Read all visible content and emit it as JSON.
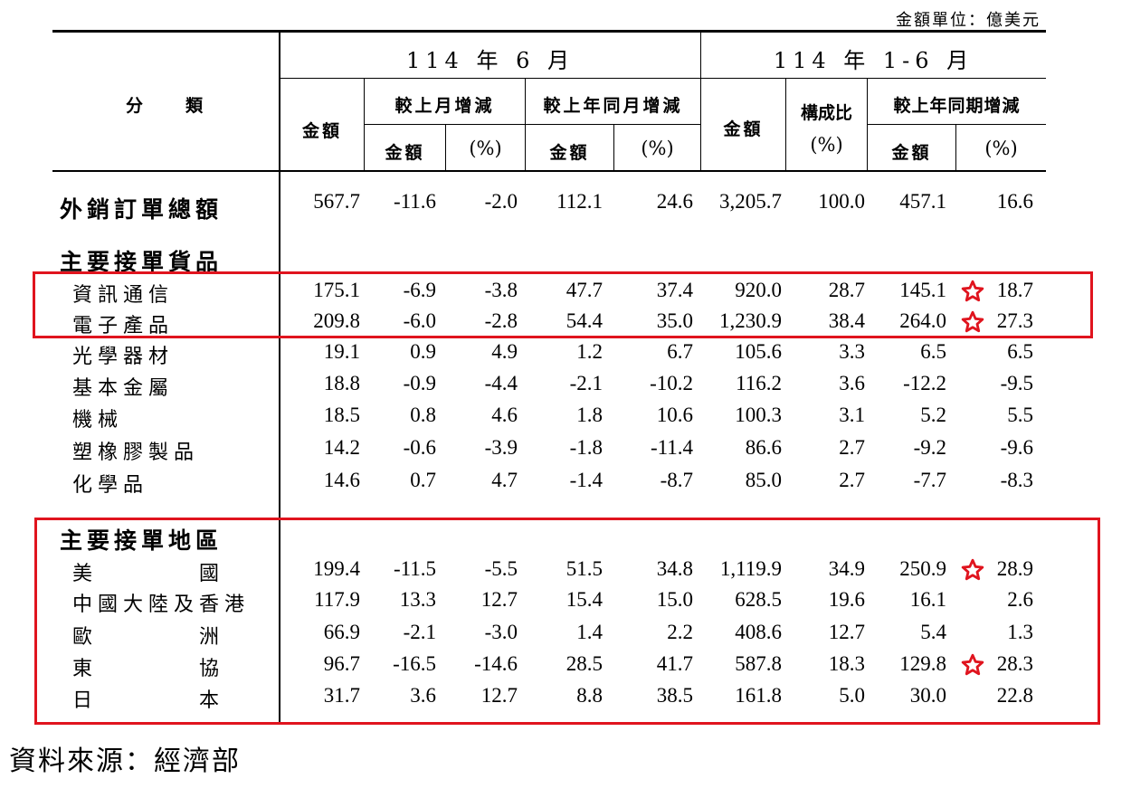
{
  "unit_note": "金額單位：億美元",
  "headers": {
    "category": "分　　類",
    "period1": "114 年 6 月",
    "period2": "114 年 1-6 月",
    "amount": "金額",
    "mom": "較上月增減",
    "yoy_month": "較上年同月增減",
    "share": "構成比",
    "share_unit": "(%)",
    "yoy_period": "較上年同期增減",
    "sub_amount": "金額",
    "sub_pct": "(%)"
  },
  "total": {
    "label": "外銷訂單總額",
    "values": [
      "567.7",
      "-11.6",
      "-2.0",
      "112.1",
      "24.6",
      "3,205.7",
      "100.0",
      "457.1",
      "16.6"
    ]
  },
  "products": {
    "title": "主要接單貨品",
    "rows": [
      {
        "label": "資訊通信",
        "values": [
          "175.1",
          "-6.9",
          "-3.8",
          "47.7",
          "37.4",
          "920.0",
          "28.7",
          "145.1",
          "18.7"
        ]
      },
      {
        "label": "電子產品",
        "values": [
          "209.8",
          "-6.0",
          "-2.8",
          "54.4",
          "35.0",
          "1,230.9",
          "38.4",
          "264.0",
          "27.3"
        ]
      },
      {
        "label": "光學器材",
        "values": [
          "19.1",
          "0.9",
          "4.9",
          "1.2",
          "6.7",
          "105.6",
          "3.3",
          "6.5",
          "6.5"
        ]
      },
      {
        "label": "基本金屬",
        "values": [
          "18.8",
          "-0.9",
          "-4.4",
          "-2.1",
          "-10.2",
          "116.2",
          "3.6",
          "-12.2",
          "-9.5"
        ]
      },
      {
        "label": "機械",
        "values": [
          "18.5",
          "0.8",
          "4.6",
          "1.8",
          "10.6",
          "100.3",
          "3.1",
          "5.2",
          "5.5"
        ]
      },
      {
        "label": "塑橡膠製品",
        "values": [
          "14.2",
          "-0.6",
          "-3.9",
          "-1.8",
          "-11.4",
          "86.6",
          "2.7",
          "-9.2",
          "-9.6"
        ]
      },
      {
        "label": "化學品",
        "values": [
          "14.6",
          "0.7",
          "4.7",
          "-1.4",
          "-8.7",
          "85.0",
          "2.7",
          "-7.7",
          "-8.3"
        ]
      }
    ]
  },
  "regions": {
    "title": "主要接單地區",
    "rows": [
      {
        "label": "美　　　　國",
        "values": [
          "199.4",
          "-11.5",
          "-5.5",
          "51.5",
          "34.8",
          "1,119.9",
          "34.9",
          "250.9",
          "28.9"
        ]
      },
      {
        "label": "中國大陸及香港",
        "values": [
          "117.9",
          "13.3",
          "12.7",
          "15.4",
          "15.0",
          "628.5",
          "19.6",
          "16.1",
          "2.6"
        ]
      },
      {
        "label": "歐　　　　洲",
        "values": [
          "66.9",
          "-2.1",
          "-3.0",
          "1.4",
          "2.2",
          "408.6",
          "12.7",
          "5.4",
          "1.3"
        ]
      },
      {
        "label": "東　　　　協",
        "values": [
          "96.7",
          "-16.5",
          "-14.6",
          "28.5",
          "41.7",
          "587.8",
          "18.3",
          "129.8",
          "28.3"
        ]
      },
      {
        "label": "日　　　　本",
        "values": [
          "31.7",
          "3.6",
          "12.7",
          "8.8",
          "38.5",
          "161.8",
          "5.0",
          "30.0",
          "22.8"
        ]
      }
    ]
  },
  "highlight_color": "#e0141e",
  "star_icon": "star-outline-icon",
  "source": "資料來源：經濟部"
}
